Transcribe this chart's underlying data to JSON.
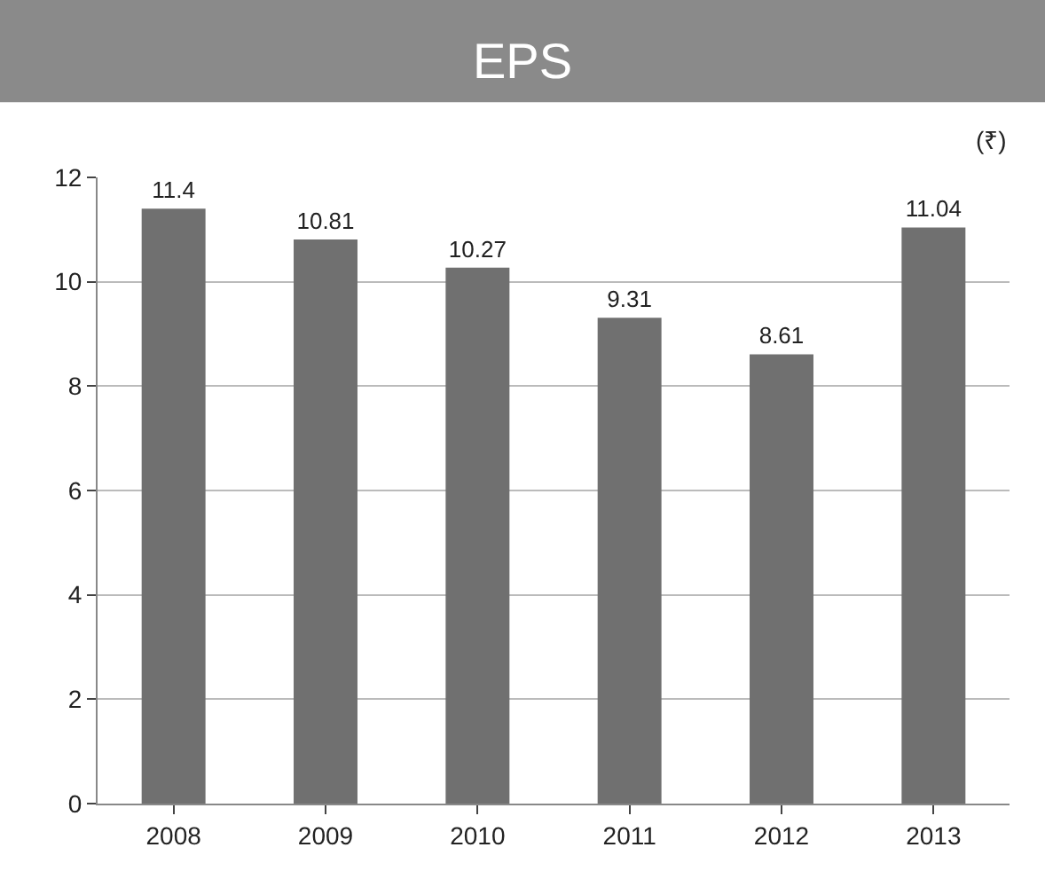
{
  "chart_data": {
    "type": "bar",
    "title": "EPS",
    "ylabel": "(₹)",
    "categories": [
      "2008",
      "2009",
      "2010",
      "2011",
      "2012",
      "2013"
    ],
    "values": [
      11.4,
      10.81,
      10.27,
      9.31,
      8.61,
      11.04
    ],
    "value_labels": [
      "11.4",
      "10.81",
      "10.27",
      "9.31",
      "8.61",
      "11.04"
    ],
    "color": "#707070",
    "ylim": [
      0,
      12
    ],
    "yticks": [
      0,
      2,
      4,
      6,
      8,
      10,
      12
    ],
    "grid": "y"
  }
}
